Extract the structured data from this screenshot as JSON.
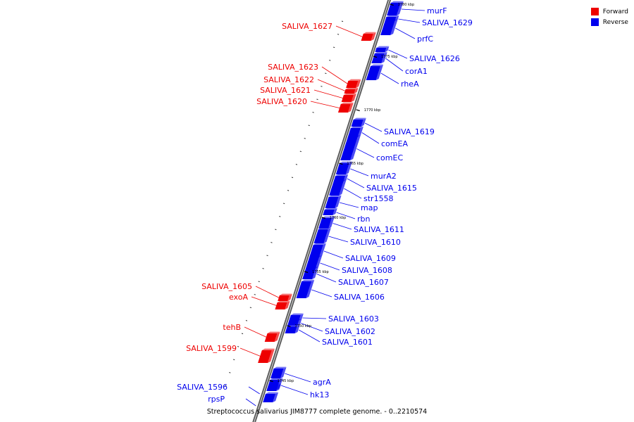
{
  "legend": [
    {
      "label": "Forward",
      "color": "#ee0000"
    },
    {
      "label": "Reverse",
      "color": "#0000ee"
    }
  ],
  "caption": "Streptococcus salivarius JIM8777 complete genome. - 0..2210574",
  "tick_labels": [
    "1780 kbp",
    "1775 kbp",
    "1770 kbp",
    "1765 kbp",
    "1760 kbp",
    "1755 kbp",
    "1750 kbp",
    "1745 kbp"
  ],
  "forward_genes": [
    "SALIVA_1627",
    "SALIVA_1623",
    "SALIVA_1622",
    "SALIVA_1621",
    "SALIVA_1620",
    "SALIVA_1605",
    "exoA",
    "tehB",
    "SALIVA_1599"
  ],
  "reverse_genes": [
    "murF",
    "SALIVA_1629",
    "prfC",
    "SALIVA_1626",
    "corA1",
    "rheA",
    "SALIVA_1619",
    "comEA",
    "comEC",
    "murA2",
    "SALIVA_1615",
    "str1558",
    "map",
    "rbn",
    "SALIVA_1611",
    "SALIVA_1610",
    "SALIVA_1609",
    "SALIVA_1608",
    "SALIVA_1607",
    "SALIVA_1606",
    "SALIVA_1603",
    "SALIVA_1602",
    "SALIVA_1601",
    "agrA",
    "hk13",
    "SALIVA_1596",
    "rpsP"
  ]
}
